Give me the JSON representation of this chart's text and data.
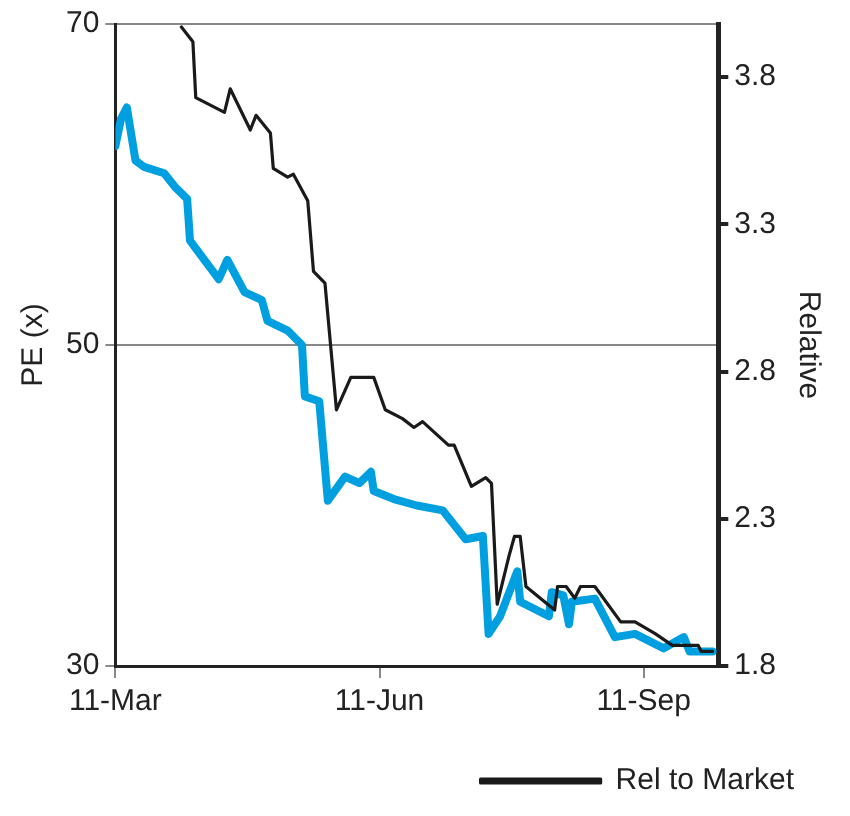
{
  "chart_data": {
    "type": "line",
    "ylabel": "PE (x)",
    "y2label": "Relative",
    "xlim": [
      "--03-11",
      "--10-07"
    ],
    "xticks": [
      {
        "value": "--03-11",
        "label": "11-Mar"
      },
      {
        "value": "--06-11",
        "label": "11-Jun"
      },
      {
        "value": "--09-11",
        "label": "11-Sep"
      }
    ],
    "ylim": [
      30,
      70
    ],
    "yticks": [
      30,
      50,
      70
    ],
    "y2lim": [
      1.8,
      3.98
    ],
    "y2ticks": [
      1.8,
      2.3,
      2.8,
      3.3,
      3.8
    ],
    "grid": "y",
    "legend": "bottom",
    "marker": "none",
    "line_style": "solid",
    "series": [
      {
        "color": "#009fdf",
        "x": [
          "--03-11",
          "--03-13",
          "--03-15",
          "--03-16",
          "--03-18",
          "--03-21",
          "--03-28",
          "--04-01",
          "--04-05",
          "--04-06",
          "--04-16",
          "--04-19",
          "--04-25",
          "--05-01",
          "--05-03",
          "--05-10",
          "--05-15",
          "--05-16",
          "--05-21",
          "--05-24",
          "--05-30",
          "--06-04",
          "--06-08",
          "--06-09",
          "--06-16",
          "--06-24",
          "--07-03",
          "--07-11",
          "--07-17",
          "--07-19",
          "--07-23",
          "--07-29",
          "--07-30",
          "--08-09",
          "--08-10",
          "--08-14",
          "--08-16",
          "--08-17",
          "--08-25",
          "--09-01",
          "--09-08",
          "--09-18",
          "--09-25",
          "--09-27",
          "--10-05"
        ],
        "values": [
          62.4,
          64.1,
          64.8,
          63.7,
          61.5,
          61.1,
          60.7,
          59.8,
          59.1,
          56.5,
          54.1,
          55.3,
          53.3,
          52.8,
          51.5,
          50.9,
          50.0,
          46.8,
          46.5,
          40.3,
          41.8,
          41.4,
          42.1,
          40.9,
          40.4,
          40.0,
          39.7,
          37.9,
          38.1,
          32.0,
          33.1,
          35.9,
          34.0,
          33.1,
          34.6,
          34.4,
          32.6,
          34.0,
          34.2,
          31.8,
          32.0,
          31.1,
          31.8,
          30.9,
          30.9
        ]
      },
      {
        "name": "Rel to Market",
        "color": "#1a1a1a",
        "axis": "y2",
        "x": [
          "--04-03",
          "--04-07",
          "--04-08",
          "--04-18",
          "--04-20",
          "--04-27",
          "--04-29",
          "--05-04",
          "--05-05",
          "--05-10",
          "--05-12",
          "--05-17",
          "--05-19",
          "--05-23",
          "--05-27",
          "--06-01",
          "--06-09",
          "--06-13",
          "--06-19",
          "--06-23",
          "--06-26",
          "--07-05",
          "--07-07",
          "--07-13",
          "--07-18",
          "--07-20",
          "--07-22",
          "--07-26",
          "--07-28",
          "--07-30",
          "--08-01",
          "--08-11",
          "--08-12",
          "--08-15",
          "--08-18",
          "--08-20",
          "--08-25",
          "--09-03",
          "--09-08",
          "--09-15",
          "--09-21",
          "--09-30",
          "--10-01",
          "--10-05"
        ],
        "values": [
          3.97,
          3.92,
          3.73,
          3.68,
          3.76,
          3.62,
          3.67,
          3.61,
          3.49,
          3.46,
          3.47,
          3.38,
          3.14,
          3.1,
          2.67,
          2.78,
          2.78,
          2.67,
          2.64,
          2.61,
          2.63,
          2.55,
          2.55,
          2.41,
          2.44,
          2.42,
          2.01,
          2.17,
          2.24,
          2.24,
          2.07,
          1.99,
          2.07,
          2.07,
          2.03,
          2.07,
          2.07,
          1.95,
          1.95,
          1.91,
          1.87,
          1.87,
          1.85,
          1.85
        ]
      }
    ]
  }
}
